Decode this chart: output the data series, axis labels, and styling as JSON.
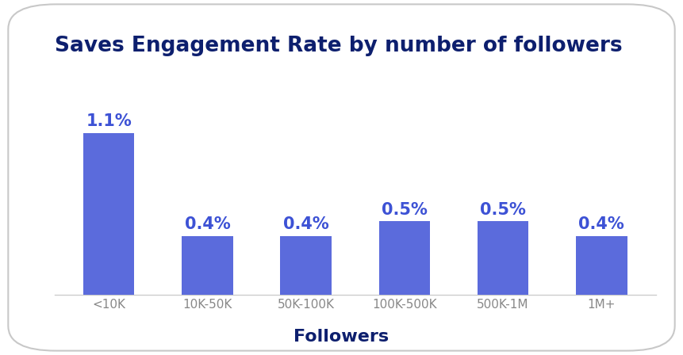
{
  "title": "Saves Engagement Rate by number of followers",
  "categories": [
    "<10K",
    "10K-50K",
    "50K-100K",
    "100K-500K",
    "500K-1M",
    "1M+"
  ],
  "values": [
    1.1,
    0.4,
    0.4,
    0.5,
    0.5,
    0.4
  ],
  "labels": [
    "1.1%",
    "0.4%",
    "0.4%",
    "0.5%",
    "0.5%",
    "0.4%"
  ],
  "bar_color": "#5B6BDC",
  "xlabel": "Followers",
  "title_color": "#0d1f6e",
  "label_color": "#3d52d5",
  "xlabel_color": "#0d1f6e",
  "background_color": "#ffffff",
  "title_fontsize": 19,
  "label_fontsize": 15,
  "xlabel_fontsize": 16,
  "tick_fontsize": 11,
  "tick_color": "#888888",
  "ylim": [
    0,
    1.45
  ]
}
